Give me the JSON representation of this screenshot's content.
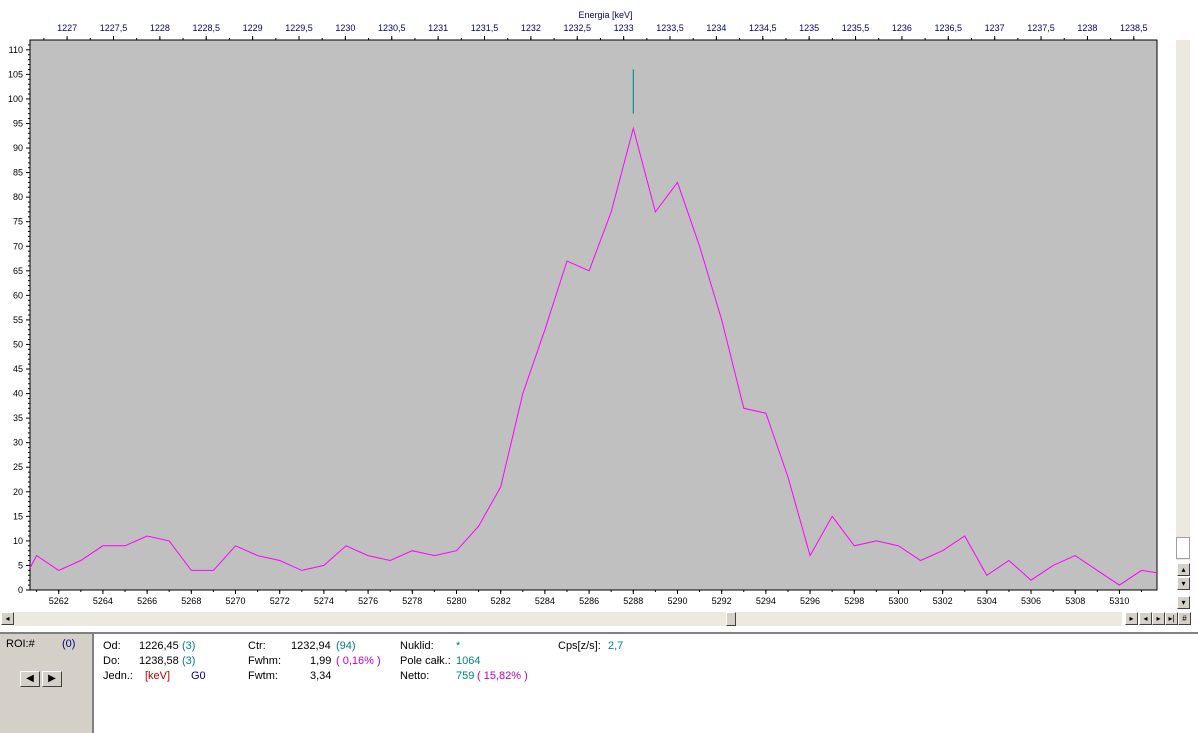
{
  "chart_data": {
    "type": "line",
    "xlabel_top": "Energia [keV]",
    "x_channel_range": [
      5260.7,
      5311.7
    ],
    "x_energy_range": [
      1226.6,
      1238.75
    ],
    "ylim": [
      0,
      112
    ],
    "y_ticks": [
      0,
      5,
      10,
      15,
      20,
      25,
      30,
      35,
      40,
      45,
      50,
      55,
      60,
      65,
      70,
      75,
      80,
      85,
      90,
      95,
      100,
      105,
      110
    ],
    "x_ticks_bottom": [
      5262,
      5264,
      5266,
      5268,
      5270,
      5272,
      5274,
      5276,
      5278,
      5280,
      5282,
      5284,
      5286,
      5288,
      5290,
      5292,
      5294,
      5296,
      5298,
      5300,
      5302,
      5304,
      5306,
      5308,
      5310
    ],
    "x_ticks_top": [
      "1227",
      "1227,5",
      "1228",
      "1228,5",
      "1229",
      "1229,5",
      "1230",
      "1230,5",
      "1231",
      "1231,5",
      "1232",
      "1232,5",
      "1233",
      "1233,5",
      "1234",
      "1234,5",
      "1235",
      "1235,5",
      "1236",
      "1236,5",
      "1237",
      "1237,5",
      "1238",
      "1238,5"
    ],
    "x_ticks_top_values": [
      1227,
      1227.5,
      1228,
      1228.5,
      1229,
      1229.5,
      1230,
      1230.5,
      1231,
      1231.5,
      1232,
      1232.5,
      1233,
      1233.5,
      1234,
      1234.5,
      1235,
      1235.5,
      1236,
      1236.5,
      1237,
      1237.5,
      1238,
      1238.5
    ],
    "series": [
      {
        "color": "#ff00ff",
        "x": [
          5260.7,
          5261,
          5262,
          5263,
          5264,
          5265,
          5266,
          5267,
          5268,
          5269,
          5270,
          5271,
          5272,
          5273,
          5274,
          5275,
          5276,
          5277,
          5278,
          5279,
          5280,
          5281,
          5282,
          5283,
          5284,
          5285,
          5286,
          5287,
          5288,
          5289,
          5290,
          5291,
          5292,
          5293,
          5294,
          5295,
          5296,
          5297,
          5298,
          5299,
          5300,
          5301,
          5302,
          5303,
          5304,
          5305,
          5306,
          5307,
          5308,
          5309,
          5310,
          5311,
          5311.7
        ],
        "y": [
          4.5,
          7,
          4,
          6,
          9,
          9,
          11,
          10,
          4,
          4,
          9,
          7,
          6,
          4,
          5,
          9,
          7,
          6,
          8,
          7,
          8,
          13,
          21,
          40,
          53,
          67,
          65,
          77,
          94,
          77,
          83,
          70,
          55,
          37,
          36,
          23,
          7,
          15,
          9,
          10,
          9,
          6,
          8,
          11,
          3,
          6,
          2,
          5,
          7,
          4,
          1,
          4,
          3.5
        ]
      }
    ],
    "marker": {
      "x": 5288,
      "y_from": 97,
      "y_to": 106,
      "color": "#008080"
    },
    "plot_bg": "#c0c0c0"
  },
  "roi": {
    "label": "ROI:#",
    "value": "(0)"
  },
  "info": {
    "od_label": "Od:",
    "od_value": "1226,45",
    "od_extra": "(3)",
    "do_label": "Do:",
    "do_value": "1238,58",
    "do_extra": "(3)",
    "jedn_label": "Jedn.:",
    "jedn_value": "[keV]",
    "jedn_extra": "G0",
    "ctr_label": "Ctr:",
    "ctr_value": "1232,94",
    "ctr_extra": "(94)",
    "fwhm_label": "Fwhm:",
    "fwhm_value": "1,99",
    "fwhm_extra": "( 0,16% )",
    "fwtm_label": "Fwtm:",
    "fwtm_value": "3,34",
    "nuklid_label": "Nuklid:",
    "nuklid_value": "*",
    "pole_label": "Pole całk.:",
    "pole_value": "1064",
    "netto_label": "Netto:",
    "netto_value": "759",
    "netto_extra": "( 15,82% )",
    "cps_label": "Cps[z/s]:",
    "cps_value": "2,7"
  },
  "controls": {
    "hash_button": "#"
  }
}
